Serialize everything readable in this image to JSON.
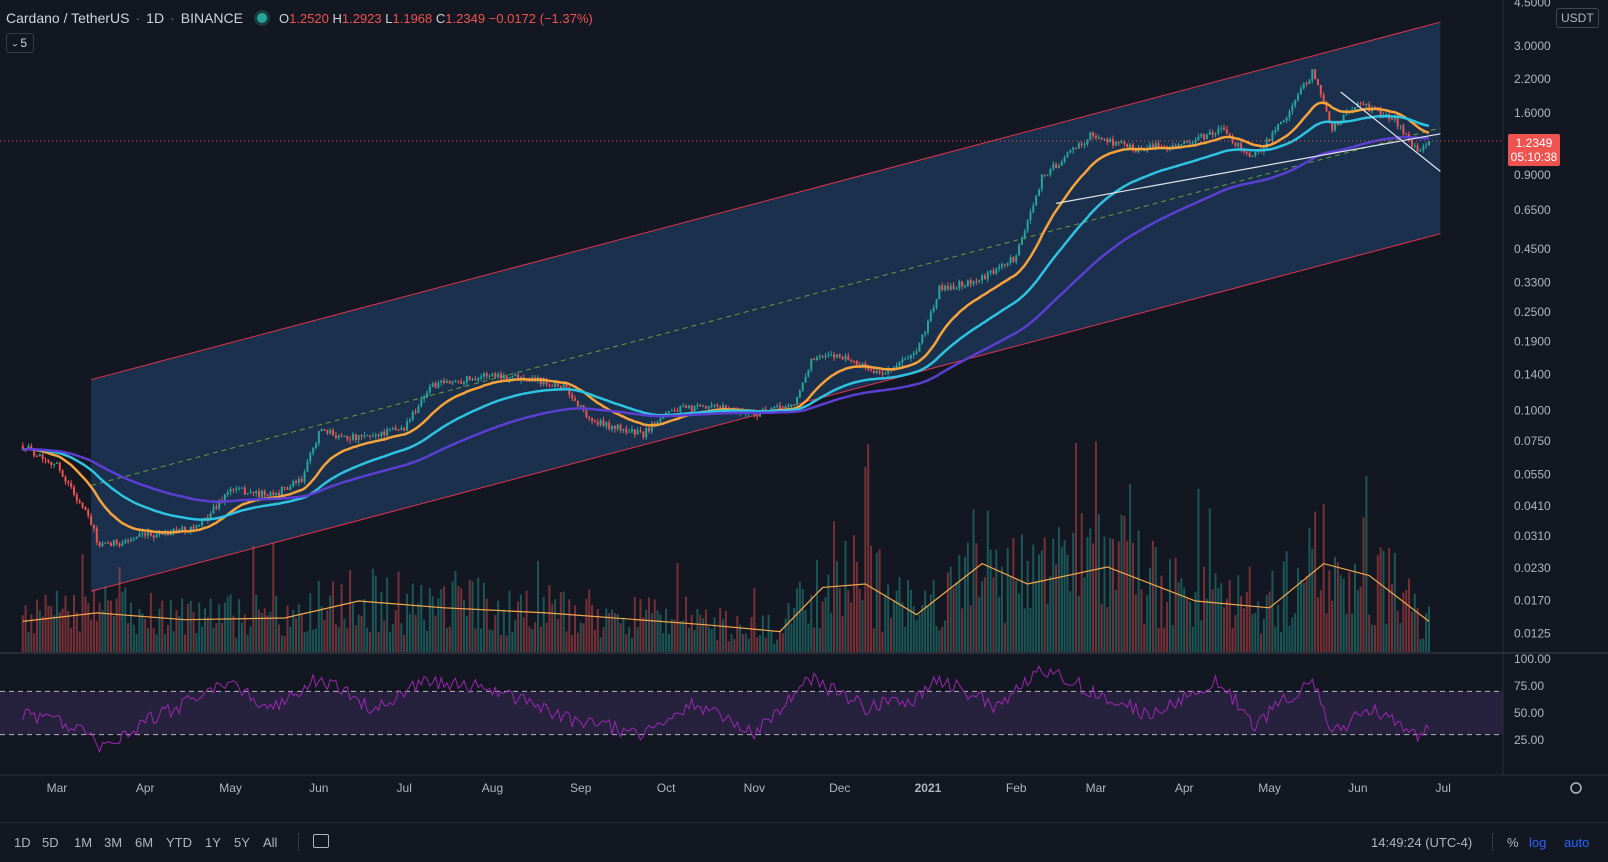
{
  "legend": {
    "symbol": "Cardano / TetherUS",
    "interval": "1D",
    "exchange": "BINANCE",
    "ohlc": {
      "o_label": "O",
      "o": "1.2520",
      "h_label": "H",
      "h": "1.2923",
      "l_label": "L",
      "l": "1.1968",
      "c_label": "C",
      "c": "1.2349",
      "change": "−0.0172 (−1.37%)"
    },
    "indicator_count": "5"
  },
  "price_axis": {
    "unit": "USDT",
    "ticks": [
      "4.5000",
      "3.0000",
      "2.2000",
      "1.6000",
      "0.9000",
      "0.6500",
      "0.4500",
      "0.3300",
      "0.2500",
      "0.1900",
      "0.1400",
      "0.1000",
      "0.0750",
      "0.0550",
      "0.0410",
      "0.0310",
      "0.0230",
      "0.0170",
      "0.0125"
    ],
    "last_price": "1.2349",
    "countdown": "05:10:38"
  },
  "rsi_axis": {
    "ticks": [
      "100.00",
      "75.00",
      "50.00",
      "25.00"
    ]
  },
  "time_axis": {
    "ticks": [
      "Mar",
      "Apr",
      "May",
      "Jun",
      "Jul",
      "Aug",
      "Sep",
      "Oct",
      "Nov",
      "Dec",
      "2021",
      "Feb",
      "Mar",
      "Apr",
      "May",
      "Jun",
      "Jul"
    ]
  },
  "bottombar": {
    "timeframes": [
      "1D",
      "5D",
      "1M",
      "3M",
      "6M",
      "YTD",
      "1Y",
      "5Y",
      "All"
    ],
    "clock": "14:49:24 (UTC-4)",
    "pct_label": "%",
    "log_label": "log",
    "auto_label": "auto"
  },
  "colors": {
    "background": "#131722",
    "up": "#26a69a",
    "down": "#ef5350",
    "ema_fast": "#f6a33b",
    "ema_mid": "#2fc3e2",
    "ema_slow": "#5b3fd1",
    "rsi": "#9c27b0",
    "channel": "#e0344a",
    "channel_fill": "#1e3a5c",
    "volume_ma": "#f7a84a"
  },
  "chart_data": {
    "type": "candlestick",
    "title": "Cardano / TetherUS 1D BINANCE",
    "x_range": [
      "2020-02",
      "2021-07"
    ],
    "y_scale": "log",
    "y_range": [
      0.011,
      4.5
    ],
    "anchors_date_price": [
      [
        "2020-02-18",
        0.072
      ],
      [
        "2020-03-01",
        0.06
      ],
      [
        "2020-03-12",
        0.037
      ],
      [
        "2020-03-16",
        0.028
      ],
      [
        "2020-04-01",
        0.031
      ],
      [
        "2020-04-20",
        0.034
      ],
      [
        "2020-05-01",
        0.048
      ],
      [
        "2020-05-15",
        0.045
      ],
      [
        "2020-05-26",
        0.052
      ],
      [
        "2020-06-01",
        0.082
      ],
      [
        "2020-06-15",
        0.077
      ],
      [
        "2020-07-01",
        0.085
      ],
      [
        "2020-07-10",
        0.125
      ],
      [
        "2020-07-31",
        0.14
      ],
      [
        "2020-08-15",
        0.135
      ],
      [
        "2020-08-26",
        0.125
      ],
      [
        "2020-09-05",
        0.09
      ],
      [
        "2020-09-23",
        0.08
      ],
      [
        "2020-10-01",
        0.1
      ],
      [
        "2020-10-20",
        0.103
      ],
      [
        "2020-11-01",
        0.097
      ],
      [
        "2020-11-15",
        0.105
      ],
      [
        "2020-11-21",
        0.16
      ],
      [
        "2020-12-01",
        0.168
      ],
      [
        "2020-12-15",
        0.14
      ],
      [
        "2020-12-28",
        0.17
      ],
      [
        "2021-01-05",
        0.31
      ],
      [
        "2021-01-20",
        0.34
      ],
      [
        "2021-02-01",
        0.42
      ],
      [
        "2021-02-10",
        0.88
      ],
      [
        "2021-02-27",
        1.3
      ],
      [
        "2021-03-15",
        1.15
      ],
      [
        "2021-04-01",
        1.2
      ],
      [
        "2021-04-14",
        1.37
      ],
      [
        "2021-04-25",
        1.05
      ],
      [
        "2021-05-05",
        1.45
      ],
      [
        "2021-05-16",
        2.35
      ],
      [
        "2021-05-23",
        1.4
      ],
      [
        "2021-06-01",
        1.75
      ],
      [
        "2021-06-14",
        1.52
      ],
      [
        "2021-06-22",
        1.1
      ],
      [
        "2021-06-26",
        1.2349
      ]
    ],
    "volume_ma_anchors_date_fraction": [
      [
        "2020-02-18",
        0.18
      ],
      [
        "2020-03-15",
        0.23
      ],
      [
        "2020-04-15",
        0.19
      ],
      [
        "2020-05-20",
        0.2
      ],
      [
        "2020-06-15",
        0.3
      ],
      [
        "2020-07-15",
        0.26
      ],
      [
        "2020-08-20",
        0.23
      ],
      [
        "2020-10-15",
        0.16
      ],
      [
        "2020-11-10",
        0.12
      ],
      [
        "2020-11-25",
        0.38
      ],
      [
        "2020-12-10",
        0.4
      ],
      [
        "2020-12-28",
        0.22
      ],
      [
        "2021-01-20",
        0.52
      ],
      [
        "2021-02-05",
        0.4
      ],
      [
        "2021-03-05",
        0.5
      ],
      [
        "2021-04-05",
        0.3
      ],
      [
        "2021-05-01",
        0.26
      ],
      [
        "2021-05-20",
        0.52
      ],
      [
        "2021-06-05",
        0.45
      ],
      [
        "2021-06-26",
        0.18
      ]
    ],
    "rsi_anchors_date_value": [
      [
        "2020-02-18",
        50
      ],
      [
        "2020-03-12",
        35
      ],
      [
        "2020-03-16",
        15
      ],
      [
        "2020-04-01",
        42
      ],
      [
        "2020-05-01",
        78
      ],
      [
        "2020-05-15",
        55
      ],
      [
        "2020-06-01",
        82
      ],
      [
        "2020-06-20",
        55
      ],
      [
        "2020-07-10",
        80
      ],
      [
        "2020-07-31",
        72
      ],
      [
        "2020-08-26",
        45
      ],
      [
        "2020-09-10",
        38
      ],
      [
        "2020-09-23",
        30
      ],
      [
        "2020-10-10",
        58
      ],
      [
        "2020-11-01",
        32
      ],
      [
        "2020-11-21",
        82
      ],
      [
        "2020-12-10",
        55
      ],
      [
        "2020-12-28",
        63
      ],
      [
        "2021-01-05",
        82
      ],
      [
        "2021-01-25",
        55
      ],
      [
        "2021-02-10",
        90
      ],
      [
        "2021-02-27",
        72
      ],
      [
        "2021-03-20",
        48
      ],
      [
        "2021-04-14",
        80
      ],
      [
        "2021-04-25",
        38
      ],
      [
        "2021-05-16",
        82
      ],
      [
        "2021-05-23",
        30
      ],
      [
        "2021-06-05",
        55
      ],
      [
        "2021-06-22",
        30
      ],
      [
        "2021-06-26",
        38
      ]
    ],
    "rsi_levels": [
      30,
      70
    ],
    "channel": {
      "start": [
        "2020-03-13",
        0.0185
      ],
      "end": [
        "2021-06-30",
        0.52
      ],
      "upper_multiplier": 7.2
    },
    "extra_lines": [
      {
        "from": [
          "2021-02-15",
          0.69
        ],
        "to": [
          "2021-06-30",
          1.32
        ]
      },
      {
        "from": [
          "2021-05-26",
          1.95
        ],
        "to": [
          "2021-06-30",
          0.93
        ]
      }
    ]
  }
}
